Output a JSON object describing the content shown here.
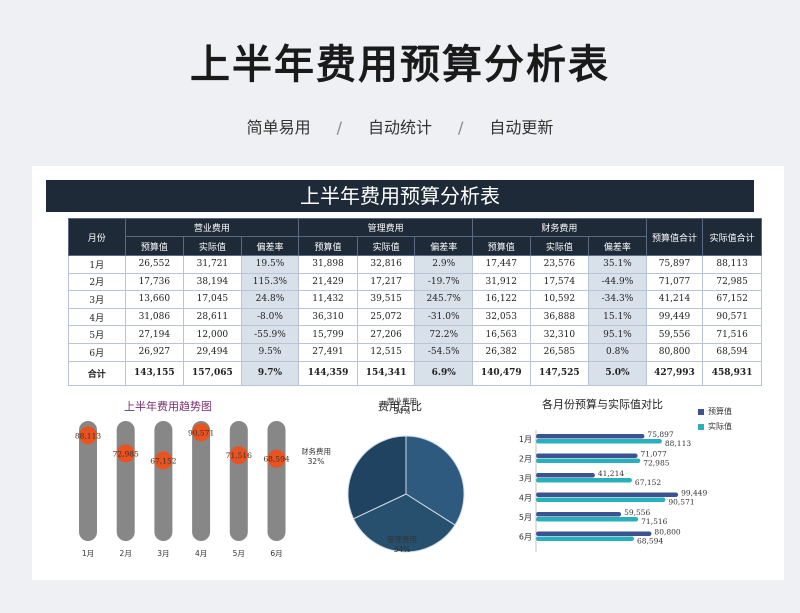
{
  "header": {
    "title": "上半年费用预算分析表",
    "tags": [
      "简单易用",
      "自动统计",
      "自动更新"
    ],
    "separator": "/"
  },
  "sheet": {
    "banner": "上半年费用预算分析表",
    "columns": {
      "month": "月份",
      "groups": [
        "营业费用",
        "管理费用",
        "财务费用"
      ],
      "sub": [
        "预算值",
        "实际值",
        "偏差率"
      ],
      "budget_total": "预算值合计",
      "actual_total": "实际值合计"
    },
    "rows": [
      {
        "month": "1月",
        "vals": [
          "26,552",
          "31,721",
          "19.5%",
          "31,898",
          "32,816",
          "2.9%",
          "17,447",
          "23,576",
          "35.1%",
          "75,897",
          "88,113"
        ]
      },
      {
        "month": "2月",
        "vals": [
          "17,736",
          "38,194",
          "115.3%",
          "21,429",
          "17,217",
          "-19.7%",
          "31,912",
          "17,574",
          "-44.9%",
          "71,077",
          "72,985"
        ]
      },
      {
        "month": "3月",
        "vals": [
          "13,660",
          "17,045",
          "24.8%",
          "11,432",
          "39,515",
          "245.7%",
          "16,122",
          "10,592",
          "-34.3%",
          "41,214",
          "67,152"
        ]
      },
      {
        "month": "4月",
        "vals": [
          "31,086",
          "28,611",
          "-8.0%",
          "36,310",
          "25,072",
          "-31.0%",
          "32,053",
          "36,888",
          "15.1%",
          "99,449",
          "90,571"
        ]
      },
      {
        "month": "5月",
        "vals": [
          "27,194",
          "12,000",
          "-55.9%",
          "15,799",
          "27,206",
          "72.2%",
          "16,563",
          "32,310",
          "95.1%",
          "59,556",
          "71,516"
        ]
      },
      {
        "month": "6月",
        "vals": [
          "26,927",
          "29,494",
          "9.5%",
          "27,491",
          "12,515",
          "-54.5%",
          "26,382",
          "26,585",
          "0.8%",
          "80,800",
          "68,594"
        ]
      }
    ],
    "total": {
      "month": "合计",
      "vals": [
        "143,155",
        "157,065",
        "9.7%",
        "144,359",
        "154,341",
        "6.9%",
        "140,479",
        "147,525",
        "5.0%",
        "427,993",
        "458,931"
      ]
    }
  },
  "chart_data": [
    {
      "type": "bar",
      "title": "上半年费用趋势图",
      "categories": [
        "1月",
        "2月",
        "3月",
        "4月",
        "5月",
        "6月"
      ],
      "values": [
        88113,
        72985,
        67152,
        90571,
        71516,
        68594
      ],
      "labels": [
        "88,113",
        "72,985",
        "67,152",
        "90,571",
        "71,516",
        "68,594"
      ],
      "colors": {
        "track": "#878787",
        "marker": "#e8531f"
      }
    },
    {
      "type": "pie",
      "title": "费用占比",
      "slices": [
        {
          "name": "营业费用",
          "value": 34,
          "label": "34%"
        },
        {
          "name": "管理费用",
          "value": 34,
          "label": "34%"
        },
        {
          "name": "财务费用",
          "value": 32,
          "label": "32%"
        }
      ],
      "colors": [
        "#2e5a80",
        "#27506f",
        "#1f4361"
      ]
    },
    {
      "type": "bar",
      "title": "各月份预算与实际值对比",
      "categories": [
        "1月",
        "2月",
        "3月",
        "4月",
        "5月",
        "6月"
      ],
      "series": [
        {
          "name": "预算值",
          "values": [
            75897,
            71077,
            41214,
            99449,
            59556,
            80800
          ],
          "labels": [
            "75,897",
            "71,077",
            "41,214",
            "99,449",
            "59,556",
            "80,800"
          ],
          "color": "#3c5391"
        },
        {
          "name": "实际值",
          "values": [
            88113,
            72985,
            67152,
            90571,
            71516,
            68594
          ],
          "labels": [
            "88,113",
            "72,985",
            "67,152",
            "90,571",
            "71,516",
            "68,594"
          ],
          "color": "#2ab0bd"
        }
      ],
      "xlim": [
        0,
        105000
      ],
      "legend": "top-right"
    }
  ]
}
